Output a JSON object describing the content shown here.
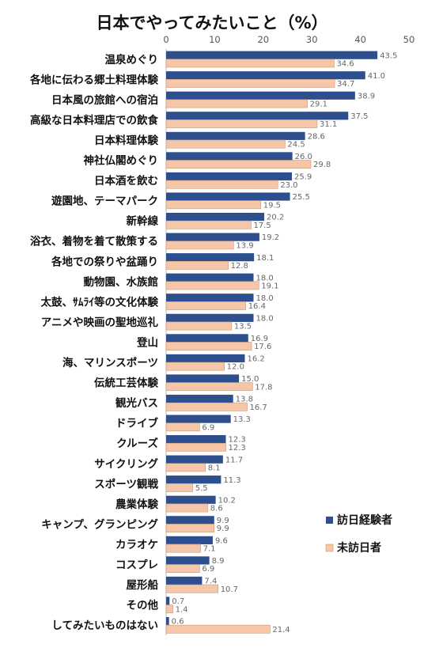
{
  "chart_data": {
    "type": "bar",
    "orientation": "horizontal",
    "title": "日本でやってみたいこと（%）",
    "xlim": [
      0,
      50
    ],
    "xticks": [
      0,
      10,
      20,
      30,
      40,
      50
    ],
    "grid": false,
    "legend_position": "right",
    "categories": [
      "温泉めぐり",
      "各地に伝わる郷土料理体験",
      "日本風の旅館への宿泊",
      "高級な日本料理店での飲食",
      "日本料理体験",
      "神社仏閣めぐり",
      "日本酒を飲む",
      "遊園地、テーマパーク",
      "新幹線",
      "浴衣、着物を着て散策する",
      "各地での祭りや盆踊り",
      "動物園、水族館",
      "太鼓、ｻﾑﾗｲ等の文化体験",
      "アニメや映画の聖地巡礼",
      "登山",
      "海、マリンスポーツ",
      "伝統工芸体験",
      "観光バス",
      "ドライブ",
      "クルーズ",
      "サイクリング",
      "スポーツ観戦",
      "農業体験",
      "キャンプ、グランピング",
      "カラオケ",
      "コスプレ",
      "屋形船",
      "その他",
      "してみたいものはない"
    ],
    "series": [
      {
        "name": "訪日経験者",
        "color": "#2d4f8e",
        "values": [
          43.5,
          41.0,
          38.9,
          37.5,
          28.6,
          26.0,
          25.9,
          25.5,
          20.2,
          19.2,
          18.1,
          18.0,
          18.0,
          18.0,
          16.9,
          16.2,
          15.0,
          13.8,
          13.3,
          12.3,
          11.7,
          11.3,
          10.2,
          9.9,
          9.6,
          8.9,
          7.4,
          0.7,
          0.6
        ],
        "labels": [
          "43.5",
          "41.0",
          "38.9",
          "37.5",
          "28.6",
          "26.0",
          "25.9",
          "25.5",
          "20.2",
          "19.2",
          "18.1",
          "18.0",
          "18.0",
          "18.0",
          "16.9",
          "16.2",
          "15.0",
          "13.8",
          "13.3",
          "12.3",
          "11.7",
          "11.3",
          "10.2",
          "9.9",
          "9.6",
          "8.9",
          "7.4",
          "0.7",
          "0.6"
        ]
      },
      {
        "name": "未訪日者",
        "color": "#f5c6a8",
        "values": [
          34.6,
          34.7,
          29.1,
          31.1,
          24.5,
          29.8,
          23.0,
          19.5,
          17.5,
          13.9,
          12.8,
          19.1,
          16.4,
          13.5,
          17.6,
          12.0,
          17.8,
          16.7,
          6.9,
          12.3,
          8.1,
          5.5,
          8.6,
          9.9,
          7.1,
          6.9,
          10.7,
          1.4,
          21.4
        ],
        "labels": [
          "34.6",
          "34.7",
          "29.1",
          "31.1",
          "24.5",
          "29.8",
          "23.0",
          "19.5",
          "17.5",
          "13.9",
          "12.8",
          "19.1",
          "16.4",
          "13.5",
          "17.6",
          "12.0",
          "17.8",
          "16.7",
          "6.9",
          "12.3",
          "8.1",
          "5.5",
          "8.6",
          "9.9",
          "7.1",
          "6.9",
          "10.7",
          "1.4",
          "21.4"
        ]
      }
    ]
  }
}
